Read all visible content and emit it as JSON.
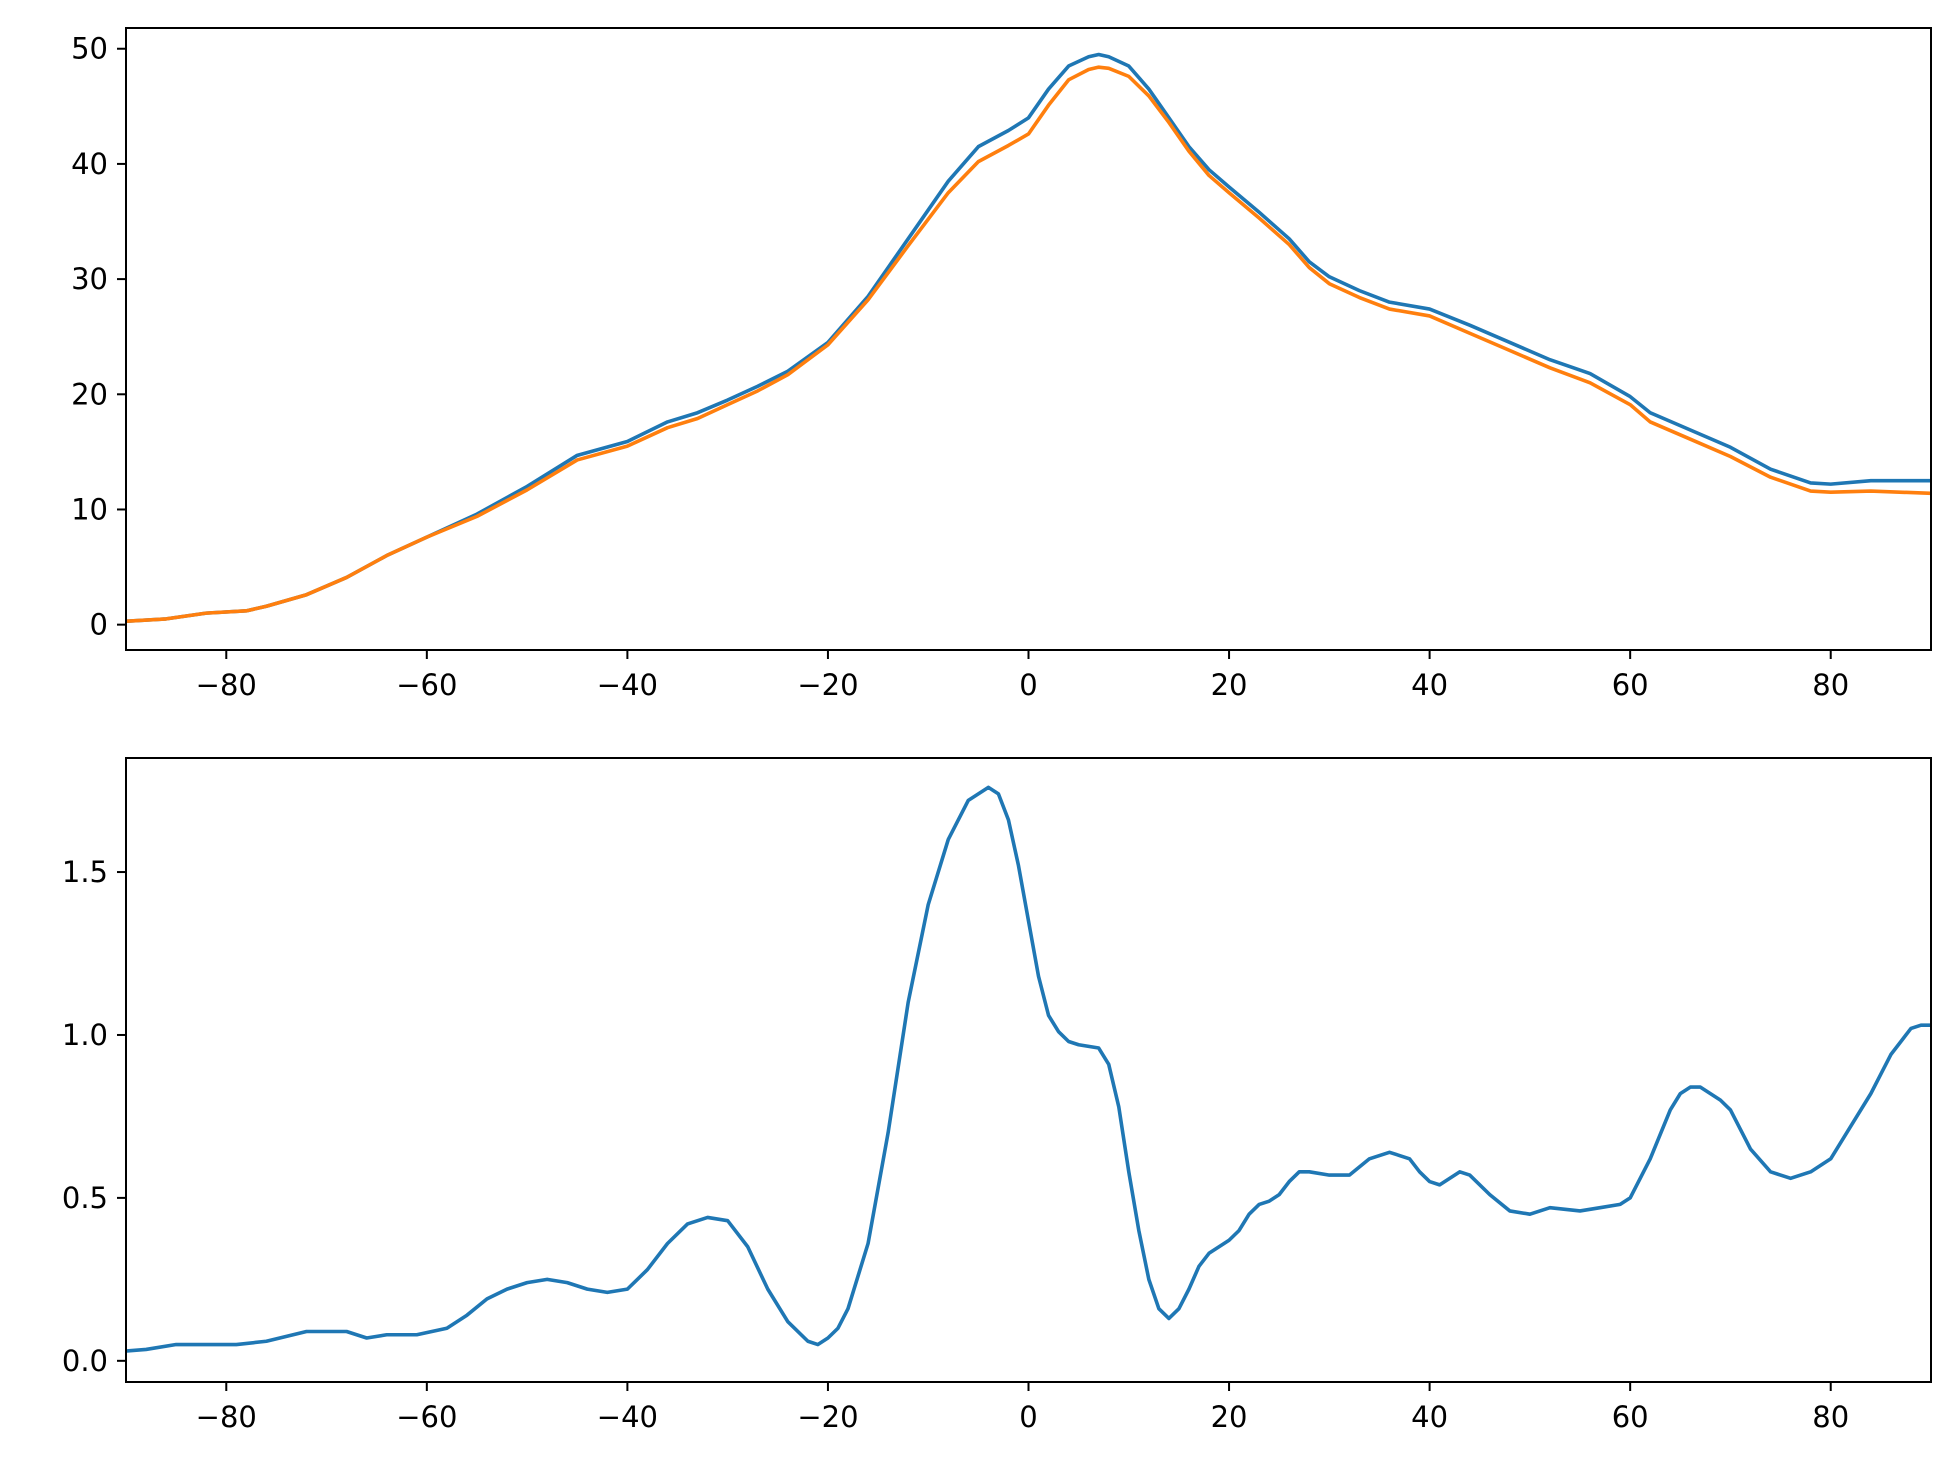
{
  "chart_data": [
    {
      "type": "line",
      "xlim": [
        -90,
        90
      ],
      "ylim": [
        -2.2,
        51.8
      ],
      "x_ticks": [
        -80,
        -60,
        -40,
        -20,
        0,
        20,
        40,
        60,
        80
      ],
      "y_ticks": [
        0,
        10,
        20,
        30,
        40,
        50
      ],
      "grid": false,
      "series": [
        {
          "color": "#1f77b4",
          "x": [
            -90,
            -86,
            -82,
            -78,
            -76,
            -72,
            -68,
            -64,
            -60,
            -55,
            -50,
            -45,
            -40,
            -36,
            -33,
            -30,
            -27,
            -24,
            -20,
            -16,
            -12,
            -8,
            -5,
            -2,
            0,
            2,
            4,
            6,
            7,
            8,
            10,
            12,
            14,
            16,
            18,
            20,
            23,
            26,
            28,
            30,
            33,
            36,
            40,
            44,
            48,
            52,
            56,
            60,
            62,
            66,
            70,
            74,
            78,
            80,
            84,
            90
          ],
          "values": [
            0.3,
            0.5,
            1.0,
            1.2,
            1.6,
            2.6,
            4.1,
            6.0,
            7.6,
            9.6,
            12.0,
            14.7,
            15.9,
            17.6,
            18.4,
            19.5,
            20.7,
            22.0,
            24.5,
            28.5,
            33.5,
            38.5,
            41.5,
            42.9,
            44.0,
            46.5,
            48.5,
            49.3,
            49.5,
            49.3,
            48.5,
            46.5,
            44.0,
            41.5,
            39.5,
            38.0,
            35.8,
            33.5,
            31.5,
            30.2,
            29.0,
            28.0,
            27.4,
            26.0,
            24.5,
            23.0,
            21.8,
            19.8,
            18.4,
            16.9,
            15.4,
            13.5,
            12.3,
            12.2,
            12.5,
            12.5
          ]
        },
        {
          "color": "#ff7f0e",
          "x": [
            -90,
            -86,
            -82,
            -78,
            -76,
            -72,
            -68,
            -64,
            -60,
            -55,
            -50,
            -45,
            -40,
            -36,
            -33,
            -30,
            -27,
            -24,
            -20,
            -16,
            -12,
            -8,
            -5,
            -2,
            0,
            2,
            4,
            6,
            7,
            8,
            10,
            12,
            14,
            16,
            18,
            20,
            23,
            26,
            28,
            30,
            33,
            36,
            40,
            44,
            48,
            52,
            56,
            60,
            62,
            66,
            70,
            74,
            78,
            80,
            84,
            90
          ],
          "values": [
            0.3,
            0.5,
            1.0,
            1.2,
            1.6,
            2.6,
            4.1,
            6.0,
            7.6,
            9.4,
            11.7,
            14.3,
            15.5,
            17.1,
            17.9,
            19.1,
            20.3,
            21.7,
            24.3,
            28.2,
            32.9,
            37.5,
            40.2,
            41.6,
            42.6,
            45.1,
            47.3,
            48.2,
            48.4,
            48.3,
            47.6,
            45.9,
            43.6,
            41.1,
            39.0,
            37.5,
            35.3,
            33.0,
            31.0,
            29.6,
            28.4,
            27.4,
            26.8,
            25.3,
            23.8,
            22.3,
            21.0,
            19.1,
            17.6,
            16.1,
            14.6,
            12.8,
            11.6,
            11.5,
            11.6,
            11.4
          ]
        }
      ]
    },
    {
      "type": "line",
      "xlim": [
        -90,
        90
      ],
      "ylim": [
        -0.065,
        1.85
      ],
      "x_ticks": [
        -80,
        -60,
        -40,
        -20,
        0,
        20,
        40,
        60,
        80
      ],
      "y_ticks": [
        0.0,
        0.5,
        1.0,
        1.5
      ],
      "y_tick_labels": [
        "0.0",
        "0.5",
        "1.0",
        "1.5"
      ],
      "grid": false,
      "series": [
        {
          "color": "#1f77b4",
          "x": [
            -90,
            -88,
            -85,
            -82,
            -79,
            -76,
            -72,
            -68,
            -66,
            -64,
            -61,
            -58,
            -56,
            -54,
            -52,
            -50,
            -48,
            -46,
            -44,
            -42,
            -40,
            -38,
            -36,
            -34,
            -32,
            -30,
            -28,
            -26,
            -24,
            -22,
            -21,
            -20,
            -19,
            -18,
            -16,
            -14,
            -12,
            -10,
            -8,
            -6,
            -4,
            -3,
            -2,
            -1,
            0,
            1,
            2,
            3,
            4,
            5,
            7,
            8,
            9,
            10,
            11,
            12,
            13,
            14,
            15,
            16,
            17,
            18,
            19,
            20,
            21,
            22,
            23,
            24,
            25,
            26,
            27,
            28,
            30,
            32,
            34,
            35,
            36,
            38,
            39,
            40,
            41,
            42,
            43,
            44,
            46,
            48,
            50,
            52,
            55,
            57,
            59,
            60,
            62,
            64,
            65,
            66,
            67,
            68,
            69,
            70,
            72,
            74,
            76,
            78,
            80,
            82,
            84,
            85,
            86,
            87,
            88,
            89,
            90
          ],
          "values": [
            0.03,
            0.035,
            0.05,
            0.05,
            0.05,
            0.06,
            0.09,
            0.09,
            0.07,
            0.08,
            0.08,
            0.1,
            0.14,
            0.19,
            0.22,
            0.24,
            0.25,
            0.24,
            0.22,
            0.21,
            0.22,
            0.28,
            0.36,
            0.42,
            0.44,
            0.43,
            0.35,
            0.22,
            0.12,
            0.06,
            0.05,
            0.07,
            0.1,
            0.16,
            0.36,
            0.7,
            1.1,
            1.4,
            1.6,
            1.72,
            1.76,
            1.74,
            1.66,
            1.52,
            1.35,
            1.18,
            1.06,
            1.01,
            0.98,
            0.97,
            0.96,
            0.91,
            0.78,
            0.58,
            0.4,
            0.25,
            0.16,
            0.13,
            0.16,
            0.22,
            0.29,
            0.33,
            0.35,
            0.37,
            0.4,
            0.45,
            0.48,
            0.49,
            0.51,
            0.55,
            0.58,
            0.58,
            0.57,
            0.57,
            0.62,
            0.63,
            0.64,
            0.62,
            0.58,
            0.55,
            0.54,
            0.56,
            0.58,
            0.57,
            0.51,
            0.46,
            0.45,
            0.47,
            0.46,
            0.47,
            0.48,
            0.5,
            0.62,
            0.77,
            0.82,
            0.84,
            0.84,
            0.82,
            0.8,
            0.77,
            0.65,
            0.58,
            0.56,
            0.58,
            0.62,
            0.72,
            0.82,
            0.88,
            0.94,
            0.98,
            1.02,
            1.03,
            1.03
          ]
        }
      ]
    }
  ]
}
